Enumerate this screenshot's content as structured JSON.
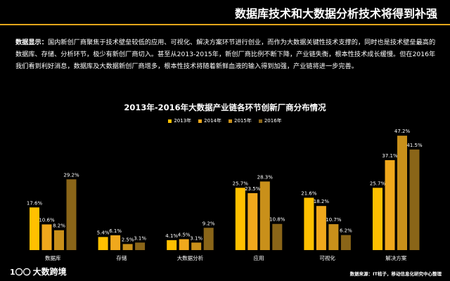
{
  "slide_title": "数据库技术和大数据分析技术将得到补强",
  "intro": {
    "lead": "数据显示：",
    "text": "国内新创厂商聚焦于技术壁垒较低的应用、可视化、解决方案环节进行创业，而作为大数据关键性技术支撑的，同时也是技术壁垒最高的数据库、存储、分析环节，极少有新创厂商切入。甚至从2013-2015年，新创厂商比例不断下降，产业链失衡，根本性技术成长缓慢。但在2016年我们看到利好消息，数据库及大数据新创厂商增多，根本性技术将随着新鲜血液的输入得到加强，产业链将进一步完善。"
  },
  "chart_data": {
    "type": "bar",
    "title": "2013年-2016年大数据产业链各环节创新厂商分布情况",
    "categories": [
      "数据库",
      "存储",
      "大数据分析",
      "应用",
      "可视化",
      "解决方案"
    ],
    "series": [
      {
        "name": "2013年",
        "color": "#ffc000",
        "values": [
          17.6,
          5.4,
          4.1,
          25.7,
          21.6,
          25.7
        ],
        "labels": [
          "17.6%",
          "5.4%",
          "4.1%",
          "25.7%",
          "21.6%",
          "25.7%"
        ]
      },
      {
        "name": "2014年",
        "color": "#f0a81c",
        "values": [
          10.6,
          6.1,
          4.5,
          23.5,
          18.2,
          37.1
        ],
        "labels": [
          "10.6%",
          "6.1%",
          "4.5%",
          "23.5%",
          "18.2%",
          "37.1%"
        ]
      },
      {
        "name": "2015年",
        "color": "#c9901a",
        "values": [
          8.2,
          2.5,
          3.1,
          28.3,
          10.7,
          47.2
        ],
        "labels": [
          "8.2%",
          "2.5%",
          "3.1%",
          "28.3%",
          "10.7%",
          "47.2%"
        ]
      },
      {
        "name": "2016年",
        "color": "#8a6518",
        "values": [
          29.2,
          3.1,
          9.2,
          10.8,
          6.2,
          41.5
        ],
        "labels": [
          "29.2%",
          "3.1%",
          "9.2%",
          "10.8%",
          "6.2%",
          "41.5%"
        ]
      }
    ],
    "ylim": [
      0,
      50
    ],
    "grid": false,
    "legend": "top-center"
  },
  "footer": {
    "logo_mark": "1〇〇",
    "logo_text": "大数跨境",
    "source": "数据来源：IT桔子，移动信息化研究中心整理"
  }
}
